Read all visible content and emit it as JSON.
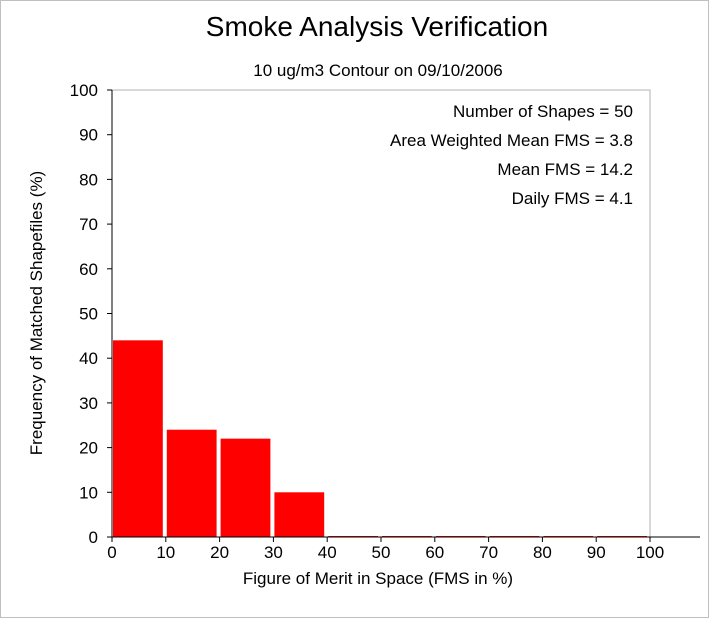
{
  "chart_data": {
    "type": "bar",
    "title": "Smoke Analysis Verification",
    "subtitle": "10 ug/m3 Contour on 09/10/2006",
    "xlabel": "Figure of Merit in Space (FMS in %)",
    "ylabel": "Frequency of Matched Shapefiles (%)",
    "xlim": [
      0,
      100
    ],
    "ylim": [
      0,
      100
    ],
    "x_ticks": [
      0,
      10,
      20,
      30,
      40,
      50,
      60,
      70,
      80,
      90,
      100
    ],
    "y_ticks": [
      0,
      10,
      20,
      30,
      40,
      50,
      60,
      70,
      80,
      90,
      100
    ],
    "bins": [
      [
        0,
        10
      ],
      [
        10,
        20
      ],
      [
        20,
        30
      ],
      [
        30,
        40
      ],
      [
        40,
        50
      ],
      [
        50,
        60
      ],
      [
        60,
        70
      ],
      [
        70,
        80
      ],
      [
        80,
        90
      ],
      [
        90,
        100
      ]
    ],
    "values": [
      44,
      24,
      22,
      10,
      0,
      0,
      0,
      0,
      0,
      0
    ],
    "bar_color": "#ff0000",
    "grid": false,
    "annotations": [
      "Number of Shapes = 50",
      "Area Weighted Mean FMS = 3.8",
      "Mean FMS = 14.2",
      "Daily FMS = 4.1"
    ]
  }
}
